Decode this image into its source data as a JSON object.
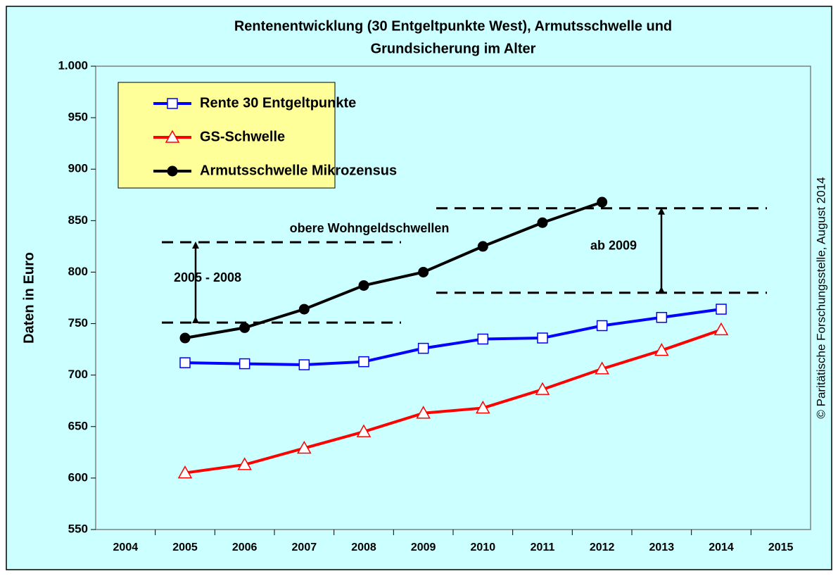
{
  "chart_data": {
    "type": "line",
    "title": [
      "Rentenentwicklung (30 Entgeltpunkte West), Armutsschwelle und",
      "Grundsicherung im Alter"
    ],
    "ylabel": "Daten in Euro",
    "credit": "© Paritätische Forschungsstelle, August 2014",
    "categories": [
      "2004",
      "2005",
      "2006",
      "2007",
      "2008",
      "2009",
      "2010",
      "2011",
      "2012",
      "2013",
      "2014",
      "2015"
    ],
    "series": [
      {
        "name": "Rente 30 Entgeltpunkte",
        "color": "#0000ff",
        "marker": "square",
        "values": [
          null,
          712,
          711,
          710,
          713,
          726,
          735,
          736,
          748,
          756,
          764,
          null
        ]
      },
      {
        "name": "GS-Schwelle",
        "color": "#ff0000",
        "marker": "triangle",
        "values": [
          null,
          605,
          613,
          629,
          645,
          663,
          668,
          686,
          706,
          724,
          744,
          null
        ]
      },
      {
        "name": "Armutsschwelle Mikrozensus",
        "color": "#000000",
        "marker": "circle",
        "values": [
          null,
          736,
          746,
          764,
          787,
          800,
          825,
          848,
          868,
          null,
          null,
          null
        ]
      }
    ],
    "ylim": [
      550,
      1000
    ],
    "yticks": [
      550,
      600,
      650,
      700,
      750,
      800,
      850,
      900,
      950,
      {
        "value": 1000,
        "label": "1.000"
      }
    ],
    "reference_label": "obere Wohngeldschwellen",
    "annotations": [
      {
        "text": "2005 - 2008",
        "range": [
          751,
          829
        ]
      },
      {
        "text": "ab 2009",
        "range": [
          780,
          862
        ]
      }
    ],
    "grid": false
  }
}
